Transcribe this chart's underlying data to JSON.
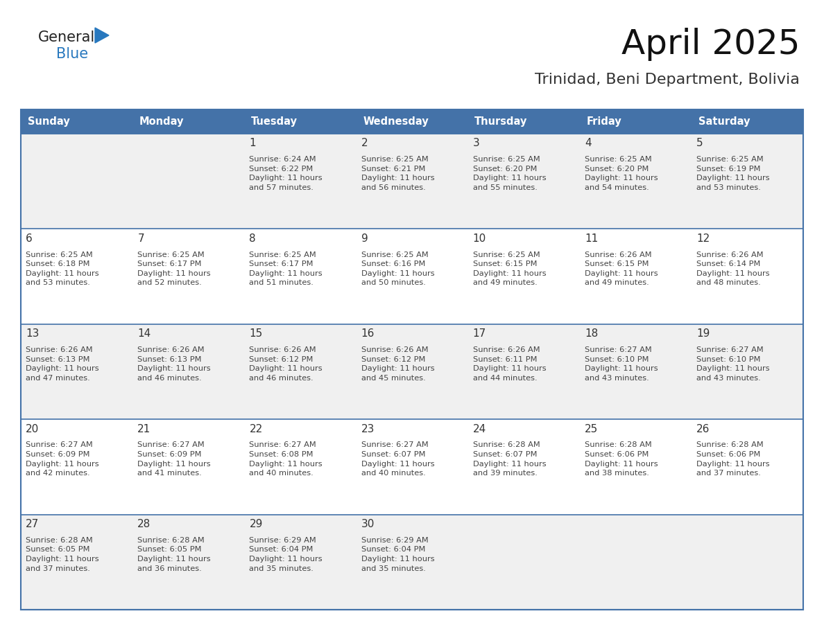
{
  "title": "April 2025",
  "subtitle": "Trinidad, Beni Department, Bolivia",
  "header_bg": "#4472A8",
  "header_text": "#FFFFFF",
  "header_days": [
    "Sunday",
    "Monday",
    "Tuesday",
    "Wednesday",
    "Thursday",
    "Friday",
    "Saturday"
  ],
  "row_bg_odd": "#F0F0F0",
  "row_bg_even": "#FFFFFF",
  "border_color": "#4472A8",
  "cell_text_color": "#444444",
  "day_num_color": "#333333",
  "calendar": [
    [
      null,
      null,
      {
        "day": "1",
        "sunrise": "6:24 AM",
        "sunset": "6:22 PM",
        "daylight": "11 hours\nand 57 minutes."
      },
      {
        "day": "2",
        "sunrise": "6:25 AM",
        "sunset": "6:21 PM",
        "daylight": "11 hours\nand 56 minutes."
      },
      {
        "day": "3",
        "sunrise": "6:25 AM",
        "sunset": "6:20 PM",
        "daylight": "11 hours\nand 55 minutes."
      },
      {
        "day": "4",
        "sunrise": "6:25 AM",
        "sunset": "6:20 PM",
        "daylight": "11 hours\nand 54 minutes."
      },
      {
        "day": "5",
        "sunrise": "6:25 AM",
        "sunset": "6:19 PM",
        "daylight": "11 hours\nand 53 minutes."
      }
    ],
    [
      {
        "day": "6",
        "sunrise": "6:25 AM",
        "sunset": "6:18 PM",
        "daylight": "11 hours\nand 53 minutes."
      },
      {
        "day": "7",
        "sunrise": "6:25 AM",
        "sunset": "6:17 PM",
        "daylight": "11 hours\nand 52 minutes."
      },
      {
        "day": "8",
        "sunrise": "6:25 AM",
        "sunset": "6:17 PM",
        "daylight": "11 hours\nand 51 minutes."
      },
      {
        "day": "9",
        "sunrise": "6:25 AM",
        "sunset": "6:16 PM",
        "daylight": "11 hours\nand 50 minutes."
      },
      {
        "day": "10",
        "sunrise": "6:25 AM",
        "sunset": "6:15 PM",
        "daylight": "11 hours\nand 49 minutes."
      },
      {
        "day": "11",
        "sunrise": "6:26 AM",
        "sunset": "6:15 PM",
        "daylight": "11 hours\nand 49 minutes."
      },
      {
        "day": "12",
        "sunrise": "6:26 AM",
        "sunset": "6:14 PM",
        "daylight": "11 hours\nand 48 minutes."
      }
    ],
    [
      {
        "day": "13",
        "sunrise": "6:26 AM",
        "sunset": "6:13 PM",
        "daylight": "11 hours\nand 47 minutes."
      },
      {
        "day": "14",
        "sunrise": "6:26 AM",
        "sunset": "6:13 PM",
        "daylight": "11 hours\nand 46 minutes."
      },
      {
        "day": "15",
        "sunrise": "6:26 AM",
        "sunset": "6:12 PM",
        "daylight": "11 hours\nand 46 minutes."
      },
      {
        "day": "16",
        "sunrise": "6:26 AM",
        "sunset": "6:12 PM",
        "daylight": "11 hours\nand 45 minutes."
      },
      {
        "day": "17",
        "sunrise": "6:26 AM",
        "sunset": "6:11 PM",
        "daylight": "11 hours\nand 44 minutes."
      },
      {
        "day": "18",
        "sunrise": "6:27 AM",
        "sunset": "6:10 PM",
        "daylight": "11 hours\nand 43 minutes."
      },
      {
        "day": "19",
        "sunrise": "6:27 AM",
        "sunset": "6:10 PM",
        "daylight": "11 hours\nand 43 minutes."
      }
    ],
    [
      {
        "day": "20",
        "sunrise": "6:27 AM",
        "sunset": "6:09 PM",
        "daylight": "11 hours\nand 42 minutes."
      },
      {
        "day": "21",
        "sunrise": "6:27 AM",
        "sunset": "6:09 PM",
        "daylight": "11 hours\nand 41 minutes."
      },
      {
        "day": "22",
        "sunrise": "6:27 AM",
        "sunset": "6:08 PM",
        "daylight": "11 hours\nand 40 minutes."
      },
      {
        "day": "23",
        "sunrise": "6:27 AM",
        "sunset": "6:07 PM",
        "daylight": "11 hours\nand 40 minutes."
      },
      {
        "day": "24",
        "sunrise": "6:28 AM",
        "sunset": "6:07 PM",
        "daylight": "11 hours\nand 39 minutes."
      },
      {
        "day": "25",
        "sunrise": "6:28 AM",
        "sunset": "6:06 PM",
        "daylight": "11 hours\nand 38 minutes."
      },
      {
        "day": "26",
        "sunrise": "6:28 AM",
        "sunset": "6:06 PM",
        "daylight": "11 hours\nand 37 minutes."
      }
    ],
    [
      {
        "day": "27",
        "sunrise": "6:28 AM",
        "sunset": "6:05 PM",
        "daylight": "11 hours\nand 37 minutes."
      },
      {
        "day": "28",
        "sunrise": "6:28 AM",
        "sunset": "6:05 PM",
        "daylight": "11 hours\nand 36 minutes."
      },
      {
        "day": "29",
        "sunrise": "6:29 AM",
        "sunset": "6:04 PM",
        "daylight": "11 hours\nand 35 minutes."
      },
      {
        "day": "30",
        "sunrise": "6:29 AM",
        "sunset": "6:04 PM",
        "daylight": "11 hours\nand 35 minutes."
      },
      null,
      null,
      null
    ]
  ],
  "logo_text1": "General",
  "logo_text2": "Blue",
  "logo_text1_color": "#222222",
  "logo_text2_color": "#2878BE",
  "logo_triangle_color": "#2878BE",
  "fig_width": 11.88,
  "fig_height": 9.18,
  "dpi": 100
}
